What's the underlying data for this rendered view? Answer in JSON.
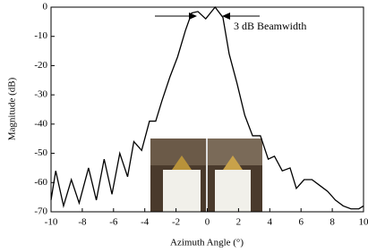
{
  "chart_data": {
    "type": "line",
    "annotation": "3 dB Beamwidth",
    "x_label": "Azimuth Angle (°)",
    "y_label": "Magnitude (dB)",
    "x": [
      -10,
      -9.7,
      -9.2,
      -8.7,
      -8.2,
      -7.6,
      -7.1,
      -6.6,
      -6.1,
      -5.6,
      -5.1,
      -4.7,
      -4.2,
      -3.7,
      -3.3,
      -2.9,
      -2.4,
      -1.9,
      -1.4,
      -1.0,
      -0.6,
      -0.1,
      0.5,
      1.0,
      1.4,
      1.9,
      2.4,
      2.9,
      3.4,
      3.9,
      4.3,
      4.8,
      5.3,
      5.7,
      6.2,
      6.7,
      7.2,
      7.7,
      8.2,
      8.7,
      9.2,
      9.7,
      10
    ],
    "series": [
      {
        "color": "#000000",
        "values": [
          -66,
          -56,
          -68,
          -59,
          -67,
          -55,
          -66,
          -52,
          -64,
          -50,
          -58,
          -46,
          -49,
          -39,
          -39,
          -32,
          -24,
          -17,
          -8,
          -2,
          -1.5,
          -4,
          0,
          -3.5,
          -16,
          -26,
          -37,
          -44,
          -44,
          -52,
          -51,
          -56,
          -55,
          -62,
          -59,
          -59,
          -61,
          -63,
          -66,
          -68,
          -69,
          -69,
          -68
        ]
      }
    ],
    "xlim": [
      -10,
      10
    ],
    "xticks": [
      -10,
      -8,
      -6,
      -4,
      -2,
      0,
      2,
      4,
      6,
      8,
      10
    ],
    "ylim": [
      -70,
      0
    ],
    "yticks": [
      0,
      -10,
      -20,
      -30,
      -40,
      -50,
      -60,
      -70
    ]
  }
}
